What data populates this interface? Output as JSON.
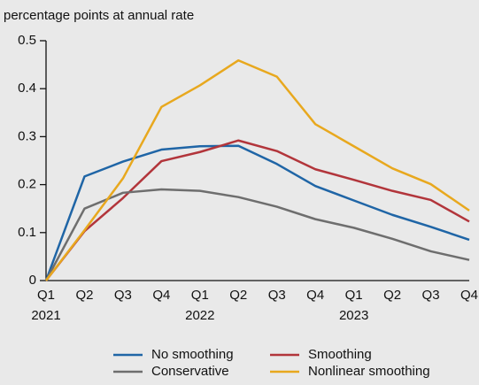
{
  "chart_data": {
    "type": "line",
    "ylabel": "percentage points at annual rate",
    "categories": [
      "Q1",
      "Q2",
      "Q3",
      "Q4",
      "Q1",
      "Q2",
      "Q3",
      "Q4",
      "Q1",
      "Q2",
      "Q3",
      "Q4"
    ],
    "years": [
      "2021",
      null,
      null,
      null,
      "2022",
      null,
      null,
      null,
      "2023",
      null,
      null,
      null
    ],
    "series": [
      {
        "name": "No smoothing",
        "color": "#1f65a6",
        "values": [
          0,
          0.217,
          0.248,
          0.273,
          0.28,
          0.281,
          0.243,
          0.197,
          0.167,
          0.137,
          0.112,
          0.085
        ]
      },
      {
        "name": "Smoothing",
        "color": "#b2353b",
        "values": [
          0,
          0.103,
          0.172,
          0.249,
          0.268,
          0.292,
          0.27,
          0.232,
          0.21,
          0.187,
          0.168,
          0.123
        ]
      },
      {
        "name": "Conservative",
        "color": "#6e6e6e",
        "values": [
          0,
          0.15,
          0.183,
          0.19,
          0.187,
          0.174,
          0.154,
          0.128,
          0.11,
          0.087,
          0.061,
          0.043
        ]
      },
      {
        "name": "Nonlinear smoothing",
        "color": "#e8a81e",
        "values": [
          0,
          0.105,
          0.213,
          0.362,
          0.407,
          0.459,
          0.425,
          0.326,
          0.28,
          0.234,
          0.201,
          0.146
        ]
      }
    ],
    "ylim": [
      0,
      0.5
    ],
    "yticks": [
      0,
      0.1,
      0.2,
      0.3,
      0.4,
      0.5
    ],
    "grid": false,
    "legend": "bottom"
  }
}
